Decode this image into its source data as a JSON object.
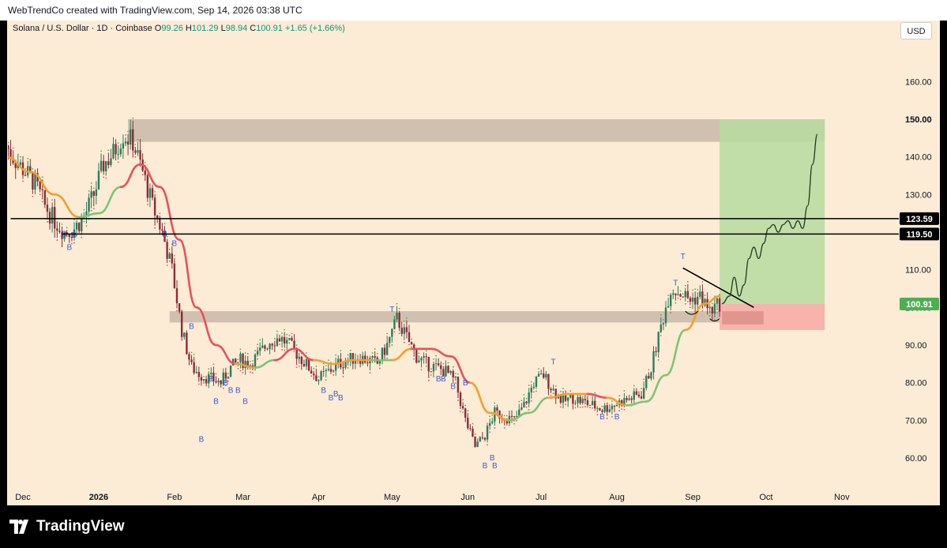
{
  "header": {
    "attribution": "WebTrendCo created with TradingView.com, Sep 14, 2026 03:38 UTC"
  },
  "legend": {
    "symbol": "Solana / U.S. Dollar · 1D · Coinbase",
    "open_label": "O",
    "open": "99.26",
    "high_label": "H",
    "high": "101.29",
    "low_label": "L",
    "low": "98.94",
    "close_label": "C",
    "close": "100.91",
    "change": "+1.65 (+1.66%)"
  },
  "currency_button": "USD",
  "footer": {
    "brand": "TradingView"
  },
  "colors": {
    "background": "#fcebd5",
    "bull": "#2e7d5b",
    "bear": "#8b2e3a",
    "ma_down": "#e8505b",
    "ma_up": "#7cc576",
    "ma_neutral": "#f0a030",
    "zone": "#c8b8a8",
    "target_zone": "#b7dca0",
    "stop_zone": "#f6a9a4",
    "price_label": "#4caf50"
  },
  "chart_data": {
    "type": "candlestick",
    "title": "Solana / U.S. Dollar · 1D · Coinbase",
    "y_axis": {
      "ticks": [
        "60.00",
        "70.00",
        "80.00",
        "90.00",
        "100.00",
        "110.00",
        "120.00",
        "130.00",
        "140.00",
        "150.00",
        "160.00"
      ],
      "ylim": [
        55,
        170
      ]
    },
    "x_axis": {
      "ticks": [
        "Dec",
        "2026",
        "Feb",
        "Mar",
        "Apr",
        "May",
        "Jun",
        "Jul",
        "Aug",
        "Sep",
        "Oct",
        "Nov"
      ]
    },
    "close_path": [
      [
        "2025-11-24",
        143
      ],
      [
        "2025-11-28",
        139
      ],
      [
        "2025-12-02",
        136
      ],
      [
        "2025-12-06",
        133
      ],
      [
        "2025-12-10",
        127
      ],
      [
        "2025-12-14",
        123
      ],
      [
        "2025-12-18",
        120
      ],
      [
        "2025-12-22",
        121
      ],
      [
        "2025-12-26",
        124
      ],
      [
        "2025-12-30",
        130
      ],
      [
        "2026-01-03",
        138
      ],
      [
        "2026-01-07",
        141
      ],
      [
        "2026-01-11",
        146
      ],
      [
        "2026-01-15",
        144
      ],
      [
        "2026-01-19",
        136
      ],
      [
        "2026-01-23",
        127
      ],
      [
        "2026-01-27",
        120
      ],
      [
        "2026-01-31",
        110
      ],
      [
        "2026-02-04",
        94
      ],
      [
        "2026-02-08",
        84
      ],
      [
        "2026-02-12",
        82
      ],
      [
        "2026-02-16",
        81
      ],
      [
        "2026-02-20",
        80
      ],
      [
        "2026-02-24",
        84
      ],
      [
        "2026-02-28",
        86
      ],
      [
        "2026-03-04",
        85
      ],
      [
        "2026-03-08",
        88
      ],
      [
        "2026-03-12",
        91
      ],
      [
        "2026-03-16",
        92
      ],
      [
        "2026-03-20",
        90
      ],
      [
        "2026-03-24",
        87
      ],
      [
        "2026-03-28",
        84
      ],
      [
        "2026-04-01",
        81
      ],
      [
        "2026-04-05",
        83
      ],
      [
        "2026-04-09",
        85
      ],
      [
        "2026-04-13",
        86
      ],
      [
        "2026-04-17",
        87
      ],
      [
        "2026-04-21",
        86
      ],
      [
        "2026-04-25",
        85
      ],
      [
        "2026-04-29",
        90
      ],
      [
        "2026-05-03",
        97
      ],
      [
        "2026-05-07",
        92
      ],
      [
        "2026-05-11",
        87
      ],
      [
        "2026-05-15",
        85
      ],
      [
        "2026-05-19",
        84
      ],
      [
        "2026-05-23",
        83
      ],
      [
        "2026-05-27",
        80
      ],
      [
        "2026-05-31",
        70
      ],
      [
        "2026-06-04",
        63
      ],
      [
        "2026-06-08",
        66
      ],
      [
        "2026-06-12",
        72
      ],
      [
        "2026-06-16",
        71
      ],
      [
        "2026-06-20",
        70
      ],
      [
        "2026-06-24",
        74
      ],
      [
        "2026-06-28",
        80
      ],
      [
        "2026-07-02",
        82
      ],
      [
        "2026-07-06",
        78
      ],
      [
        "2026-07-10",
        75
      ],
      [
        "2026-07-14",
        76
      ],
      [
        "2026-07-18",
        75
      ],
      [
        "2026-07-22",
        74
      ],
      [
        "2026-07-26",
        73
      ],
      [
        "2026-07-30",
        74
      ],
      [
        "2026-08-03",
        75
      ],
      [
        "2026-08-07",
        76
      ],
      [
        "2026-08-11",
        77
      ],
      [
        "2026-08-15",
        84
      ],
      [
        "2026-08-19",
        95
      ],
      [
        "2026-08-23",
        105
      ],
      [
        "2026-08-27",
        104
      ],
      [
        "2026-08-31",
        102
      ],
      [
        "2026-09-04",
        103
      ],
      [
        "2026-09-08",
        99
      ],
      [
        "2026-09-12",
        100.91
      ]
    ],
    "moving_average": [
      [
        "2025-11-24",
        140,
        "neutral"
      ],
      [
        "2025-12-04",
        136,
        "neutral"
      ],
      [
        "2025-12-14",
        130,
        "neutral"
      ],
      [
        "2025-12-24",
        124,
        "neutral"
      ],
      [
        "2026-01-01",
        125,
        "up"
      ],
      [
        "2026-01-10",
        132,
        "up"
      ],
      [
        "2026-01-18",
        138,
        "down"
      ],
      [
        "2026-01-26",
        132,
        "down"
      ],
      [
        "2026-02-03",
        118,
        "down"
      ],
      [
        "2026-02-10",
        100,
        "down"
      ],
      [
        "2026-02-18",
        90,
        "down"
      ],
      [
        "2026-02-26",
        85,
        "down"
      ],
      [
        "2026-03-06",
        84,
        "neutral"
      ],
      [
        "2026-03-14",
        86,
        "up"
      ],
      [
        "2026-03-22",
        89,
        "down"
      ],
      [
        "2026-03-30",
        86,
        "down"
      ],
      [
        "2026-04-07",
        85,
        "neutral"
      ],
      [
        "2026-04-15",
        86,
        "neutral"
      ],
      [
        "2026-04-23",
        86,
        "neutral"
      ],
      [
        "2026-05-01",
        86,
        "up"
      ],
      [
        "2026-05-09",
        89,
        "neutral"
      ],
      [
        "2026-05-17",
        89,
        "down"
      ],
      [
        "2026-05-25",
        87,
        "down"
      ],
      [
        "2026-06-02",
        80,
        "down"
      ],
      [
        "2026-06-10",
        72,
        "neutral"
      ],
      [
        "2026-06-18",
        70,
        "neutral"
      ],
      [
        "2026-06-26",
        72,
        "up"
      ],
      [
        "2026-07-04",
        76,
        "up"
      ],
      [
        "2026-07-12",
        77,
        "neutral"
      ],
      [
        "2026-07-20",
        77,
        "neutral"
      ],
      [
        "2026-07-28",
        76,
        "down"
      ],
      [
        "2026-08-05",
        74,
        "neutral"
      ],
      [
        "2026-08-13",
        75,
        "up"
      ],
      [
        "2026-08-21",
        82,
        "up"
      ],
      [
        "2026-08-29",
        94,
        "up"
      ],
      [
        "2026-09-06",
        101,
        "neutral"
      ],
      [
        "2026-09-12",
        103,
        "neutral"
      ]
    ],
    "horizontal_levels": [
      {
        "price": 123.59,
        "label": "123.59",
        "from": "2025-11-26"
      },
      {
        "price": 119.5,
        "label": "119.50",
        "from": "2025-12-17"
      }
    ],
    "zones": [
      {
        "name": "resistance",
        "from": "2026-01-13",
        "to": "2026-10-25",
        "top": 150,
        "bottom": 144
      },
      {
        "name": "support",
        "from": "2026-01-30",
        "to": "2026-09-12",
        "top": 99,
        "bottom": 96
      }
    ],
    "position": {
      "from": "2026-09-12",
      "to": "2026-10-25",
      "target": 150,
      "target_label": "150.00",
      "entry": 100.91,
      "stop": 94,
      "small_stop_box": {
        "from": "2026-09-13",
        "to": "2026-09-30",
        "top": 99,
        "bottom": 95.5
      }
    },
    "trendline": {
      "start": [
        "2026-08-28",
        110.5
      ],
      "end": [
        "2026-09-26",
        100
      ]
    },
    "projection": [
      [
        "2026-09-13",
        101
      ],
      [
        "2026-09-16",
        103
      ],
      [
        "2026-09-18",
        108
      ],
      [
        "2026-09-20",
        103
      ],
      [
        "2026-09-22",
        106
      ],
      [
        "2026-09-24",
        113
      ],
      [
        "2026-09-26",
        116
      ],
      [
        "2026-09-28",
        113
      ],
      [
        "2026-09-30",
        117
      ],
      [
        "2026-10-02",
        121
      ],
      [
        "2026-10-04",
        122
      ],
      [
        "2026-10-06",
        120
      ],
      [
        "2026-10-08",
        122
      ],
      [
        "2026-10-10",
        123
      ],
      [
        "2026-10-12",
        121
      ],
      [
        "2026-10-14",
        123
      ],
      [
        "2026-10-16",
        121
      ],
      [
        "2026-10-18",
        127
      ],
      [
        "2026-10-20",
        138
      ],
      [
        "2026-10-22",
        146
      ]
    ],
    "signals": [
      {
        "date": "2025-12-18",
        "price": 120.5,
        "label": "B"
      },
      {
        "date": "2025-12-22",
        "price": 120.2,
        "label": "B"
      },
      {
        "date": "2025-12-20",
        "price": 117,
        "label": "B"
      },
      {
        "date": "2026-01-28",
        "price": 120.5,
        "label": "B"
      },
      {
        "date": "2026-02-01",
        "price": 118,
        "label": "B"
      },
      {
        "date": "2026-02-08",
        "price": 96,
        "label": "B"
      },
      {
        "date": "2026-02-12",
        "price": 66,
        "label": "B"
      },
      {
        "date": "2026-02-16",
        "price": 82,
        "label": "B"
      },
      {
        "date": "2026-02-18",
        "price": 76,
        "label": "B"
      },
      {
        "date": "2026-02-22",
        "price": 81,
        "label": "B"
      },
      {
        "date": "2026-02-24",
        "price": 79,
        "label": "B"
      },
      {
        "date": "2026-02-27",
        "price": 79,
        "label": "B"
      },
      {
        "date": "2026-03-02",
        "price": 76,
        "label": "B"
      },
      {
        "date": "2026-04-03",
        "price": 79,
        "label": "B"
      },
      {
        "date": "2026-04-06",
        "price": 77,
        "label": "B"
      },
      {
        "date": "2026-04-08",
        "price": 78,
        "label": "B"
      },
      {
        "date": "2026-04-10",
        "price": 77,
        "label": "B"
      },
      {
        "date": "2026-05-01",
        "price": 98,
        "label": "T"
      },
      {
        "date": "2026-05-20",
        "price": 82,
        "label": "B"
      },
      {
        "date": "2026-05-22",
        "price": 82,
        "label": "B"
      },
      {
        "date": "2026-05-26",
        "price": 80,
        "label": "B"
      },
      {
        "date": "2026-05-31",
        "price": 81,
        "label": "B"
      },
      {
        "date": "2026-06-08",
        "price": 59,
        "label": "B"
      },
      {
        "date": "2026-06-11",
        "price": 61,
        "label": "B"
      },
      {
        "date": "2026-06-12",
        "price": 59,
        "label": "B"
      },
      {
        "date": "2026-07-06",
        "price": 84,
        "label": "T"
      },
      {
        "date": "2026-07-26",
        "price": 72,
        "label": "B"
      },
      {
        "date": "2026-08-01",
        "price": 72,
        "label": "B"
      },
      {
        "date": "2026-08-28",
        "price": 112,
        "label": "T"
      },
      {
        "date": "2026-08-25",
        "price": 105,
        "label": "T"
      }
    ],
    "last_price_label": "100.91"
  }
}
